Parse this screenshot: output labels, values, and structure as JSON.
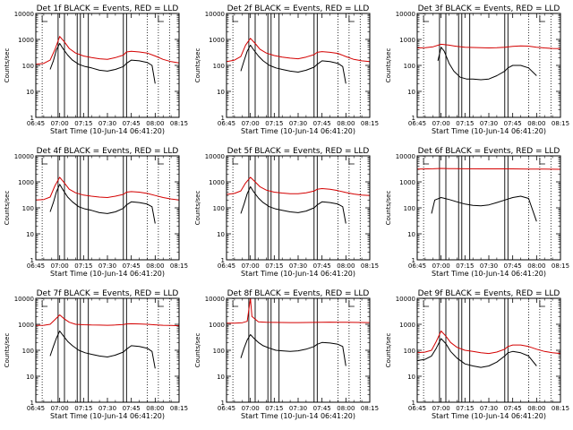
{
  "chart_data": {
    "type": "line",
    "layout": "3x3 grid",
    "shared": {
      "xlabel": "Start Time (10-Jun-14 06:41:20)",
      "ylabel": "Counts/sec",
      "y_scale": "log",
      "ylim": [
        1,
        10000
      ],
      "y_ticks": [
        1,
        10,
        100,
        1000,
        10000
      ],
      "y_tick_labels": [
        "1",
        "10",
        "100",
        "1000",
        "10000"
      ],
      "xlim": [
        "06:45",
        "08:15"
      ],
      "x_ticks": [
        "06:45",
        "07:00",
        "07:15",
        "07:30",
        "07:45",
        "08:00",
        "08:15"
      ],
      "series_colors": {
        "events": "#000000",
        "lld": "#d40000"
      },
      "solid_markers": [
        "06:59",
        "07:03",
        "07:11",
        "07:13",
        "07:18",
        "07:40",
        "07:42"
      ],
      "dotted_markers": [
        "06:49",
        "07:55",
        "08:02",
        "08:09"
      ]
    },
    "panels": [
      {
        "title": "Det 1f BLACK = Events, RED = LLD",
        "series": [
          {
            "name": "Events",
            "color": "#000000",
            "x": [
              "06:54",
              "06:56",
              "06:58",
              "07:00",
              "07:02",
              "07:05",
              "07:08",
              "07:12",
              "07:16",
              "07:20",
              "07:25",
              "07:30",
              "07:35",
              "07:40",
              "07:42",
              "07:45",
              "07:50",
              "07:55",
              "07:58",
              "08:00"
            ],
            "y": [
              70,
              150,
              400,
              700,
              450,
              250,
              160,
              110,
              90,
              80,
              65,
              60,
              70,
              90,
              120,
              160,
              150,
              130,
              100,
              20
            ]
          },
          {
            "name": "LLD",
            "color": "#d40000",
            "x": [
              "06:45",
              "06:50",
              "06:54",
              "06:57",
              "07:00",
              "07:03",
              "07:06",
              "07:10",
              "07:15",
              "07:20",
              "07:25",
              "07:30",
              "07:35",
              "07:40",
              "07:42",
              "07:45",
              "07:50",
              "07:55",
              "08:00",
              "08:05",
              "08:10",
              "08:15"
            ],
            "y": [
              110,
              120,
              160,
              400,
              1300,
              800,
              450,
              300,
              230,
              200,
              180,
              170,
              200,
              250,
              330,
              350,
              330,
              300,
              230,
              170,
              140,
              125
            ]
          }
        ]
      },
      {
        "title": "Det 2f BLACK = Events, RED = LLD",
        "series": [
          {
            "name": "Events",
            "color": "#000000",
            "x": [
              "06:54",
              "06:56",
              "06:58",
              "07:00",
              "07:02",
              "07:05",
              "07:08",
              "07:12",
              "07:16",
              "07:20",
              "07:25",
              "07:30",
              "07:35",
              "07:40",
              "07:42",
              "07:45",
              "07:50",
              "07:55",
              "07:58",
              "08:00"
            ],
            "y": [
              60,
              150,
              350,
              600,
              400,
              230,
              150,
              100,
              80,
              70,
              60,
              55,
              65,
              85,
              110,
              150,
              140,
              120,
              90,
              20
            ]
          },
          {
            "name": "LLD",
            "color": "#d40000",
            "x": [
              "06:45",
              "06:50",
              "06:54",
              "06:57",
              "07:00",
              "07:03",
              "07:06",
              "07:10",
              "07:15",
              "07:20",
              "07:25",
              "07:30",
              "07:35",
              "07:40",
              "07:42",
              "07:45",
              "07:50",
              "07:55",
              "08:00",
              "08:05",
              "08:10",
              "08:15"
            ],
            "y": [
              140,
              160,
              220,
              600,
              1100,
              700,
              420,
              300,
              240,
              210,
              190,
              180,
              210,
              260,
              320,
              340,
              320,
              290,
              220,
              170,
              150,
              140
            ]
          }
        ]
      },
      {
        "title": "Det 3f BLACK = Events, RED = LLD",
        "series": [
          {
            "name": "Events",
            "color": "#000000",
            "x": [
              "06:58",
              "07:00",
              "07:02",
              "07:05",
              "07:08",
              "07:12",
              "07:16",
              "07:20",
              "07:25",
              "07:30",
              "07:35",
              "07:40",
              "07:42",
              "07:45",
              "07:50",
              "07:55",
              "08:00"
            ],
            "y": [
              150,
              500,
              350,
              120,
              60,
              35,
              30,
              30,
              28,
              30,
              40,
              60,
              80,
              100,
              100,
              80,
              40
            ]
          },
          {
            "name": "LLD",
            "color": "#d40000",
            "x": [
              "06:45",
              "06:50",
              "06:55",
              "07:00",
              "07:05",
              "07:10",
              "07:15",
              "07:20",
              "07:25",
              "07:30",
              "07:35",
              "07:40",
              "07:45",
              "07:50",
              "07:55",
              "08:00",
              "08:05",
              "08:10",
              "08:15"
            ],
            "y": [
              470,
              480,
              520,
              650,
              600,
              540,
              500,
              490,
              480,
              470,
              480,
              500,
              540,
              560,
              550,
              500,
              470,
              450,
              440
            ]
          }
        ]
      },
      {
        "title": "Det 4f BLACK = Events, RED = LLD",
        "series": [
          {
            "name": "Events",
            "color": "#000000",
            "x": [
              "06:54",
              "06:56",
              "06:58",
              "07:00",
              "07:02",
              "07:05",
              "07:08",
              "07:12",
              "07:16",
              "07:20",
              "07:25",
              "07:30",
              "07:35",
              "07:40",
              "07:42",
              "07:45",
              "07:50",
              "07:55",
              "07:58",
              "08:00"
            ],
            "y": [
              70,
              160,
              420,
              800,
              500,
              260,
              170,
              110,
              90,
              80,
              65,
              60,
              70,
              95,
              130,
              170,
              160,
              140,
              110,
              25
            ]
          },
          {
            "name": "LLD",
            "color": "#d40000",
            "x": [
              "06:45",
              "06:50",
              "06:54",
              "06:57",
              "07:00",
              "07:03",
              "07:06",
              "07:10",
              "07:15",
              "07:20",
              "07:25",
              "07:30",
              "07:35",
              "07:40",
              "07:42",
              "07:45",
              "07:50",
              "07:55",
              "08:00",
              "08:05",
              "08:10",
              "08:15"
            ],
            "y": [
              200,
              210,
              260,
              700,
              1500,
              900,
              520,
              380,
              310,
              280,
              260,
              250,
              280,
              330,
              400,
              420,
              400,
              360,
              300,
              250,
              220,
              200
            ]
          }
        ]
      },
      {
        "title": "Det 5f BLACK = Events, RED = LLD",
        "series": [
          {
            "name": "Events",
            "color": "#000000",
            "x": [
              "06:54",
              "06:56",
              "06:58",
              "07:00",
              "07:02",
              "07:05",
              "07:08",
              "07:12",
              "07:16",
              "07:20",
              "07:25",
              "07:30",
              "07:35",
              "07:40",
              "07:42",
              "07:45",
              "07:50",
              "07:55",
              "07:58",
              "08:00"
            ],
            "y": [
              60,
              140,
              350,
              650,
              420,
              240,
              160,
              110,
              90,
              80,
              70,
              65,
              75,
              100,
              130,
              170,
              160,
              140,
              110,
              25
            ]
          },
          {
            "name": "LLD",
            "color": "#d40000",
            "x": [
              "06:45",
              "06:50",
              "06:54",
              "06:57",
              "07:00",
              "07:03",
              "07:06",
              "07:10",
              "07:15",
              "07:20",
              "07:25",
              "07:30",
              "07:35",
              "07:40",
              "07:42",
              "07:45",
              "07:50",
              "07:55",
              "08:00",
              "08:05",
              "08:10",
              "08:15"
            ],
            "y": [
              330,
              360,
              450,
              900,
              1500,
              1000,
              650,
              480,
              400,
              370,
              350,
              350,
              380,
              440,
              520,
              550,
              520,
              460,
              390,
              340,
              310,
              300
            ]
          }
        ]
      },
      {
        "title": "Det 6f BLACK = Events, RED = LLD",
        "series": [
          {
            "name": "Events",
            "color": "#000000",
            "x": [
              "06:54",
              "06:56",
              "07:00",
              "07:05",
              "07:10",
              "07:15",
              "07:20",
              "07:25",
              "07:30",
              "07:35",
              "07:40",
              "07:45",
              "07:50",
              "07:55",
              "08:00"
            ],
            "y": [
              60,
              200,
              250,
              210,
              170,
              140,
              125,
              120,
              130,
              160,
              200,
              250,
              280,
              230,
              30
            ]
          },
          {
            "name": "LLD",
            "color": "#d40000",
            "x": [
              "06:45",
              "06:55",
              "07:00",
              "07:05",
              "07:15",
              "07:25",
              "07:35",
              "07:45",
              "07:55",
              "08:05",
              "08:15"
            ],
            "y": [
              3100,
              3200,
              3300,
              3250,
              3200,
              3150,
              3150,
              3150,
              3100,
              3100,
              3050
            ]
          }
        ]
      },
      {
        "title": "Det 7f BLACK = Events, RED = LLD",
        "series": [
          {
            "name": "Events",
            "color": "#000000",
            "x": [
              "06:54",
              "06:56",
              "06:58",
              "07:00",
              "07:02",
              "07:05",
              "07:08",
              "07:12",
              "07:16",
              "07:20",
              "07:25",
              "07:30",
              "07:35",
              "07:40",
              "07:42",
              "07:45",
              "07:50",
              "07:55",
              "07:58",
              "08:00"
            ],
            "y": [
              60,
              140,
              300,
              550,
              380,
              220,
              150,
              100,
              80,
              70,
              60,
              55,
              65,
              85,
              110,
              150,
              140,
              120,
              90,
              20
            ]
          },
          {
            "name": "LLD",
            "color": "#d40000",
            "x": [
              "06:45",
              "06:50",
              "06:54",
              "06:57",
              "07:00",
              "07:03",
              "07:06",
              "07:10",
              "07:15",
              "07:20",
              "07:25",
              "07:30",
              "07:35",
              "07:40",
              "07:42",
              "07:45",
              "07:50",
              "07:55",
              "08:00",
              "08:05",
              "08:10",
              "08:15"
            ],
            "y": [
              900,
              920,
              1000,
              1500,
              2300,
              1600,
              1200,
              1000,
              960,
              940,
              930,
              920,
              940,
              980,
              1030,
              1050,
              1030,
              1000,
              950,
              920,
              900,
              880
            ]
          }
        ]
      },
      {
        "title": "Det 8f BLACK = Events, RED = LLD",
        "series": [
          {
            "name": "Events",
            "color": "#000000",
            "x": [
              "06:54",
              "06:56",
              "06:58",
              "07:00",
              "07:02",
              "07:05",
              "07:08",
              "07:12",
              "07:16",
              "07:20",
              "07:25",
              "07:30",
              "07:35",
              "07:40",
              "07:42",
              "07:45",
              "07:50",
              "07:55",
              "07:58",
              "08:00"
            ],
            "y": [
              50,
              120,
              250,
              400,
              300,
              200,
              150,
              120,
              100,
              95,
              90,
              95,
              110,
              140,
              170,
              200,
              190,
              170,
              140,
              25
            ]
          },
          {
            "name": "LLD",
            "color": "#d40000",
            "x": [
              "06:45",
              "06:50",
              "06:55",
              "06:58",
              "07:00",
              "07:01",
              "07:05",
              "07:10",
              "07:15",
              "07:20",
              "07:25",
              "07:30",
              "07:35",
              "07:40",
              "07:45",
              "07:50",
              "07:55",
              "08:00",
              "08:05",
              "08:10",
              "08:15"
            ],
            "y": [
              1100,
              1110,
              1150,
              1300,
              10000,
              2000,
              1250,
              1200,
              1180,
              1170,
              1160,
              1160,
              1170,
              1180,
              1200,
              1210,
              1200,
              1190,
              1180,
              1170,
              1160
            ]
          }
        ]
      },
      {
        "title": "Det 9f BLACK = Events, RED = LLD",
        "series": [
          {
            "name": "Events",
            "color": "#000000",
            "x": [
              "06:45",
              "06:50",
              "06:54",
              "06:57",
              "07:00",
              "07:03",
              "07:06",
              "07:10",
              "07:15",
              "07:20",
              "07:25",
              "07:30",
              "07:35",
              "07:40",
              "07:42",
              "07:45",
              "07:50",
              "07:55",
              "08:00"
            ],
            "y": [
              40,
              45,
              60,
              120,
              280,
              180,
              90,
              50,
              30,
              25,
              22,
              25,
              35,
              60,
              80,
              90,
              80,
              60,
              25
            ]
          },
          {
            "name": "LLD",
            "color": "#d40000",
            "x": [
              "06:45",
              "06:50",
              "06:54",
              "06:57",
              "07:00",
              "07:03",
              "07:06",
              "07:10",
              "07:15",
              "07:20",
              "07:25",
              "07:30",
              "07:35",
              "07:40",
              "07:42",
              "07:45",
              "07:50",
              "07:55",
              "08:00",
              "08:05",
              "08:10",
              "08:15"
            ],
            "y": [
              80,
              85,
              100,
              220,
              550,
              350,
              200,
              130,
              100,
              90,
              80,
              75,
              85,
              110,
              140,
              160,
              160,
              140,
              110,
              90,
              80,
              75
            ]
          }
        ]
      }
    ]
  }
}
